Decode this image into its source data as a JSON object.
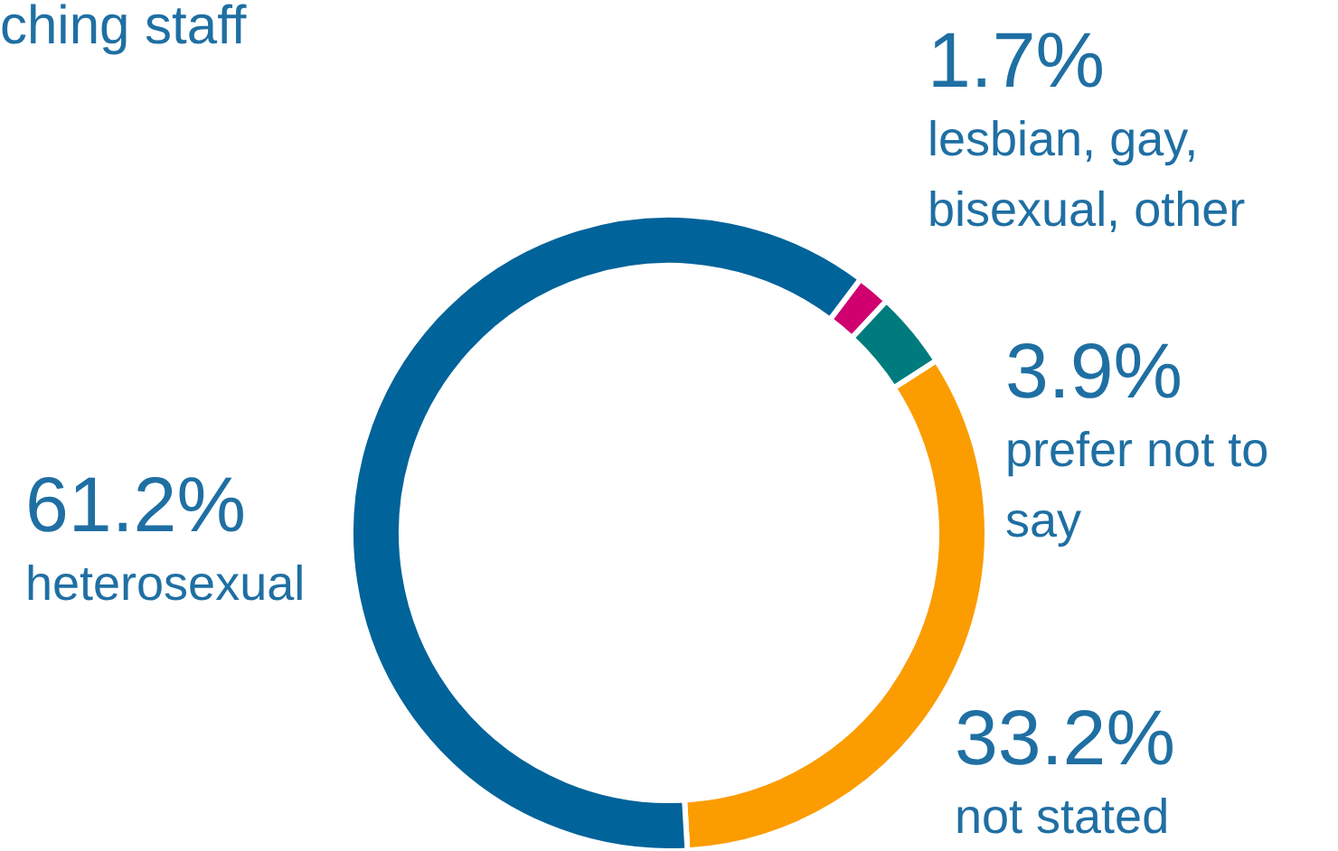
{
  "chart_data": {
    "type": "donut",
    "title": "ching staff",
    "categories": [
      "lesbian, gay, bisexual, other",
      "prefer not to say",
      "not stated",
      "heterosexual"
    ],
    "values": [
      1.7,
      3.9,
      33.2,
      61.2
    ],
    "value_labels": [
      "1.7%",
      "3.9%",
      "33.2%",
      "61.2%"
    ],
    "colors": [
      "#d0006f",
      "#007b7d",
      "#fb9c00",
      "#00639a"
    ]
  }
}
